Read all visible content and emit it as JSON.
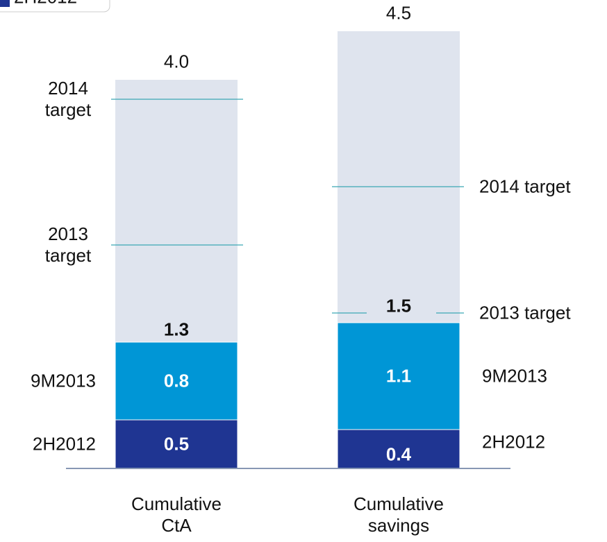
{
  "chart_data": {
    "type": "stacked_bar",
    "categories": [
      "Cumulative CtA",
      "Cumulative savings"
    ],
    "series": [
      {
        "name": "2H2012",
        "color": "#1f3592",
        "values": [
          0.5,
          0.4
        ]
      },
      {
        "name": "9M2013",
        "color": "#0096d6",
        "values": [
          0.8,
          1.1
        ]
      }
    ],
    "totals": [
      1.3,
      1.5
    ],
    "full": {
      "color": "#dfe4ee",
      "values": [
        4.0,
        4.5
      ],
      "value_labels": [
        "4.0",
        "4.5"
      ]
    },
    "targets": [
      [
        {
          "label": "2014 target",
          "value": 3.8
        },
        {
          "label": "2013 target",
          "value": 2.3
        }
      ],
      [
        {
          "label": "2014 target",
          "value": 2.9
        },
        {
          "label": "2013 target",
          "value": 1.6
        }
      ]
    ],
    "target_color": "#3aa7b5",
    "ylim": [
      0,
      4.8
    ]
  }
}
